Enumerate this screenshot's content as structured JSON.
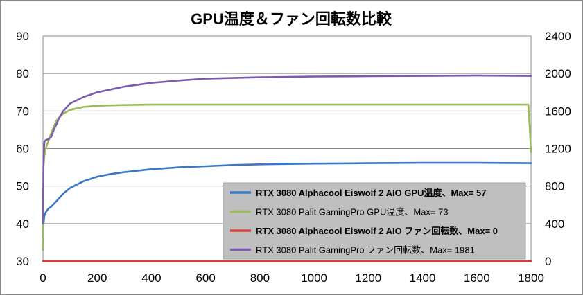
{
  "chart_data": {
    "type": "line",
    "title": "GPU温度＆ファン回転数比較",
    "x_ticks": [
      "0",
      "200",
      "400",
      "600",
      "800",
      "1000",
      "1200",
      "1400",
      "1600",
      "1800"
    ],
    "xlim": [
      0,
      1800
    ],
    "y_left_ticks": [
      "30",
      "40",
      "50",
      "60",
      "70",
      "80",
      "90"
    ],
    "ylim_left": [
      30,
      90
    ],
    "y_right_ticks": [
      "0",
      "400",
      "800",
      "1200",
      "1600",
      "2000",
      "2400"
    ],
    "ylim_right": [
      0,
      2400
    ],
    "grid": true,
    "legend_position": "bottom-right",
    "series": [
      {
        "name": "RTX 3080 Alphacool Eiswolf 2 AIO GPU温度、Max= 57",
        "axis": "left",
        "color": "#3a78c4",
        "bold": true,
        "x": [
          0,
          2,
          5,
          10,
          20,
          30,
          50,
          75,
          100,
          150,
          200,
          250,
          300,
          400,
          500,
          600,
          700,
          800,
          900,
          1000,
          1200,
          1400,
          1600,
          1800
        ],
        "y": [
          33,
          40,
          42,
          43,
          44,
          44.5,
          46,
          48,
          49.5,
          51.3,
          52.5,
          53.2,
          53.7,
          54.5,
          55.0,
          55.3,
          55.6,
          55.8,
          55.9,
          56.0,
          56.1,
          56.2,
          56.2,
          56.1
        ]
      },
      {
        "name": "RTX 3080 Palit GamingPro GPU温度、Max= 73",
        "axis": "left",
        "color": "#9bbb59",
        "bold": false,
        "x": [
          0,
          2,
          5,
          10,
          20,
          30,
          50,
          75,
          100,
          150,
          200,
          300,
          400,
          500,
          600,
          800,
          1000,
          1200,
          1400,
          1600,
          1790,
          1795,
          1800
        ],
        "y": [
          33,
          55,
          58,
          60,
          62,
          64,
          67.5,
          69.3,
          70.3,
          71.1,
          71.4,
          71.6,
          71.7,
          71.7,
          71.7,
          71.7,
          71.7,
          71.7,
          71.7,
          71.7,
          71.7,
          66,
          59
        ]
      },
      {
        "name": "RTX 3080 Alphacool Eiswolf 2 AIO ファン回転数、Max= 0",
        "axis": "right",
        "color": "#d9423a",
        "bold": true,
        "x": [
          0,
          1800
        ],
        "y": [
          0,
          0
        ]
      },
      {
        "name": "RTX 3080 Palit GamingPro ファン回転数、Max= 1981",
        "axis": "right",
        "color": "#7c5ab0",
        "bold": false,
        "x": [
          0,
          2,
          5,
          10,
          20,
          30,
          40,
          50,
          60,
          75,
          100,
          150,
          200,
          300,
          400,
          500,
          600,
          800,
          1000,
          1200,
          1400,
          1600,
          1800
        ],
        "y": [
          400,
          1100,
          1270,
          1290,
          1300,
          1320,
          1400,
          1460,
          1530,
          1600,
          1680,
          1750,
          1800,
          1860,
          1900,
          1925,
          1945,
          1960,
          1968,
          1972,
          1975,
          1978,
          1975
        ]
      }
    ]
  }
}
